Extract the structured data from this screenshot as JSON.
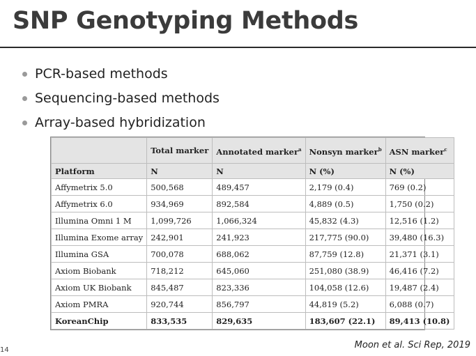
{
  "slide": {
    "title": "SNP Genotyping Methods",
    "bullets": [
      "PCR-based methods",
      "Sequencing-based methods",
      "Array-based hybridization"
    ],
    "page_number": "14",
    "citation": "Moon et al. Sci Rep, 2019"
  },
  "table": {
    "header_row1": {
      "platform": "",
      "total": "Total marker",
      "annotated": "Annotated marker",
      "annotated_sup": "a",
      "nonsyn": "Nonsyn marker",
      "nonsyn_sup": "b",
      "asn": "ASN marker",
      "asn_sup": "c"
    },
    "header_row2": {
      "platform": "Platform",
      "total": "N",
      "annotated": "N",
      "nonsyn": "N (%)",
      "asn": "N (%)"
    },
    "rows": [
      [
        "Affymetrix 5.0",
        "500,568",
        "489,457",
        "2,179 (0.4)",
        "769 (0.2)"
      ],
      [
        "Affymetrix 6.0",
        "934,969",
        "892,584",
        "4,889 (0.5)",
        "1,750 (0.2)"
      ],
      [
        "Illumina Omni 1 M",
        "1,099,726",
        "1,066,324",
        "45,832 (4.3)",
        "12,516 (1.2)"
      ],
      [
        "Illumina Exome array",
        "242,901",
        "241,923",
        "217,775 (90.0)",
        "39,480 (16.3)"
      ],
      [
        "Illumina GSA",
        "700,078",
        "688,062",
        "87,759 (12.8)",
        "21,371 (3.1)"
      ],
      [
        "Axiom Biobank",
        "718,212",
        "645,060",
        "251,080 (38.9)",
        "46,416 (7.2)"
      ],
      [
        "Axiom UK Biobank",
        "845,487",
        "823,336",
        "104,058 (12.6)",
        "19,487 (2.4)"
      ],
      [
        "Axiom PMRA",
        "920,744",
        "856,797",
        "44,819 (5.2)",
        "6,088 (0.7)"
      ],
      [
        "KoreanChip",
        "833,535",
        "829,635",
        "183,607 (22.1)",
        "89,413 (10.8)"
      ]
    ]
  }
}
